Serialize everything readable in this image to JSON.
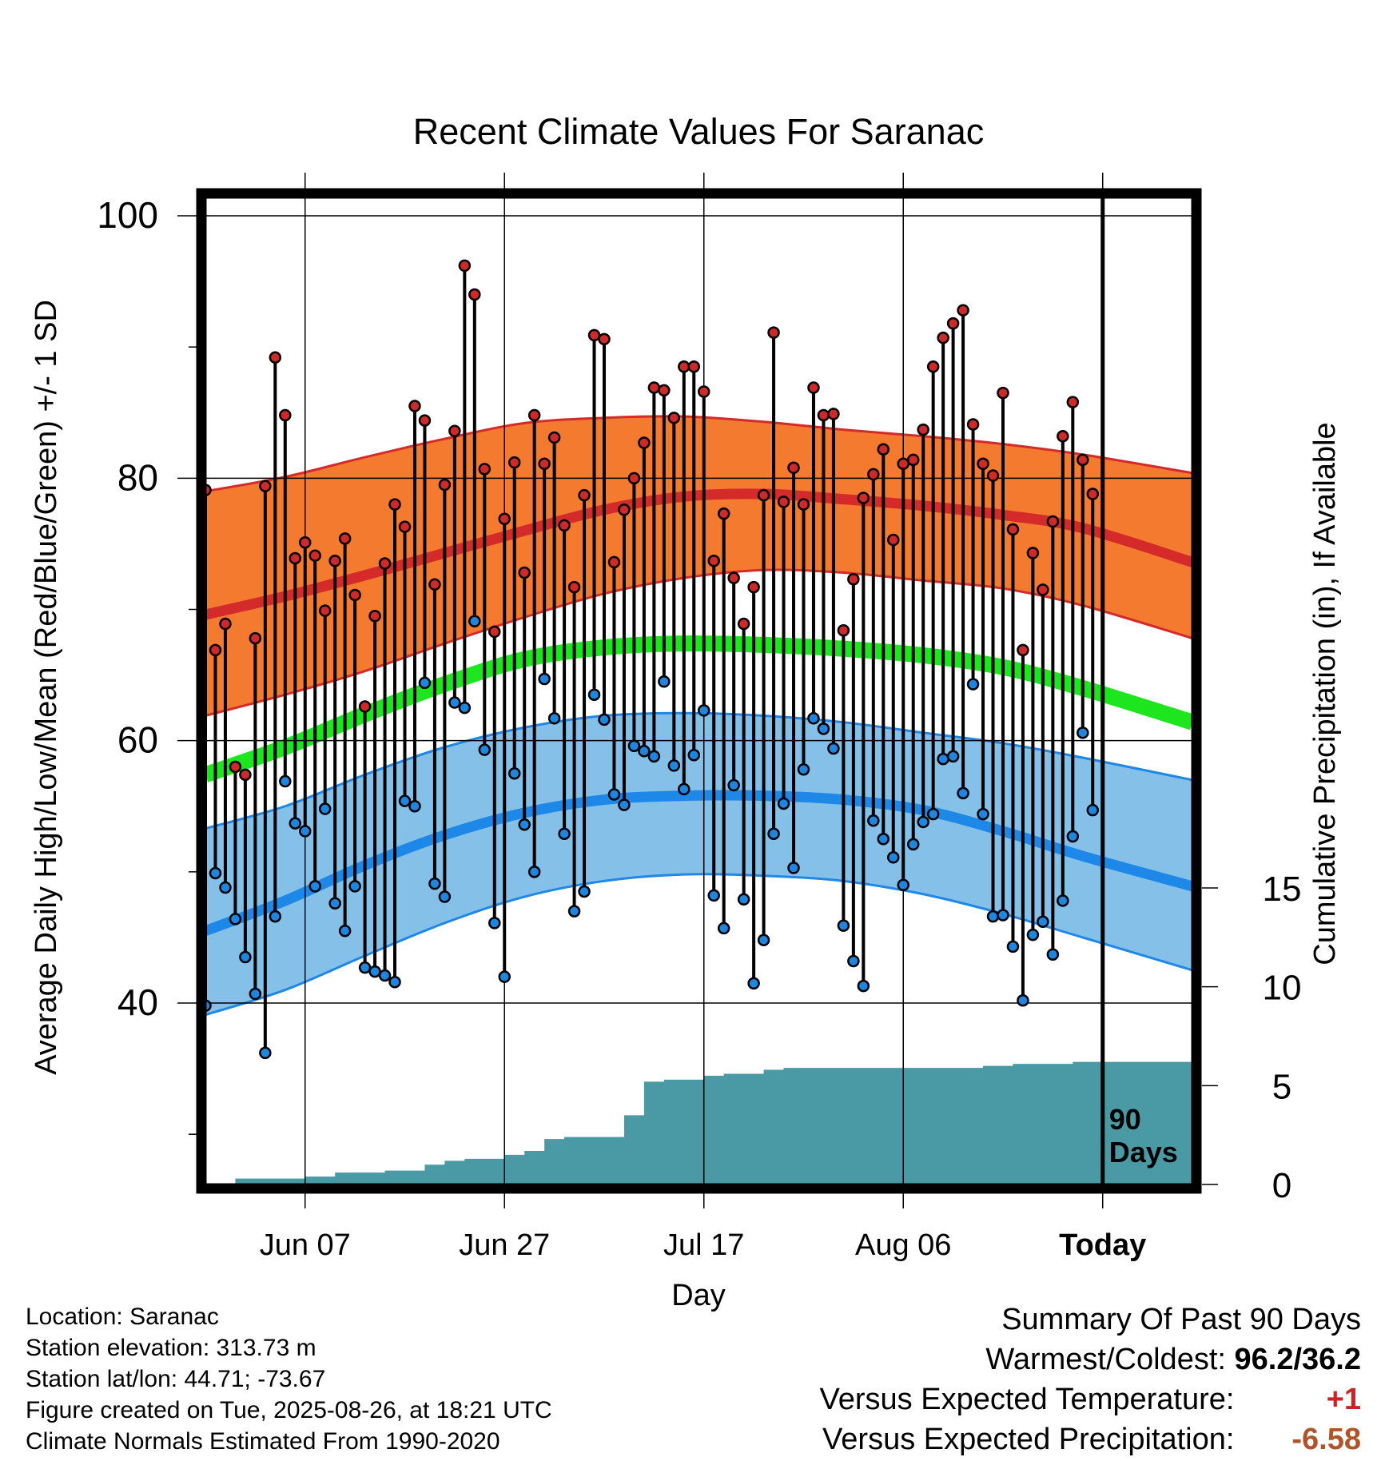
{
  "chart_data": {
    "type": "line",
    "title": "Recent Climate Values For Saranac",
    "xlabel": "Day",
    "ylabel": "Average Daily High/Low/Mean (Red/Blue/Green) +/- 1 SD",
    "y2label": "Cumulative Precipitation (in), If Available",
    "xlim": [
      "2025-05-28",
      "2025-09-04"
    ],
    "ylim": [
      28.7,
      102.8
    ],
    "y2lim": [
      0,
      20
    ],
    "x_ticks": [
      {
        "date": "2025-06-07",
        "label": "Jun 07"
      },
      {
        "date": "2025-06-27",
        "label": "Jun 27"
      },
      {
        "date": "2025-07-17",
        "label": "Jul 17"
      },
      {
        "date": "2025-08-06",
        "label": "Aug 06"
      },
      {
        "date": "2025-08-26",
        "label": "Today"
      }
    ],
    "y_ticks": [
      "40",
      "60",
      "80",
      "100"
    ],
    "y2_ticks": [
      "0",
      "5",
      "10",
      "15"
    ],
    "today": "2025-08-26",
    "window_label": [
      "90",
      "Days"
    ],
    "grid": true,
    "colors": {
      "high_normal": "#d42a2a",
      "high_band": "#f47a30",
      "low_normal": "#1e88e8",
      "low_band": "#85c0e8",
      "mean_normal": "#1ee61e",
      "precip": "#4a9aa5",
      "high_dot": "#cf2a2a",
      "low_dot": "#1f86e0"
    },
    "series": [
      {
        "name": "Daily High",
        "dates": [
          "2025-05-28",
          "2025-05-29",
          "2025-05-30",
          "2025-05-31",
          "2025-06-01",
          "2025-06-02",
          "2025-06-03",
          "2025-06-04",
          "2025-06-05",
          "2025-06-06",
          "2025-06-07",
          "2025-06-08",
          "2025-06-09",
          "2025-06-10",
          "2025-06-11",
          "2025-06-12",
          "2025-06-13",
          "2025-06-14",
          "2025-06-15",
          "2025-06-16",
          "2025-06-17",
          "2025-06-18",
          "2025-06-19",
          "2025-06-20",
          "2025-06-21",
          "2025-06-22",
          "2025-06-23",
          "2025-06-24",
          "2025-06-25",
          "2025-06-26",
          "2025-06-27",
          "2025-06-28",
          "2025-06-29",
          "2025-06-30",
          "2025-07-01",
          "2025-07-02",
          "2025-07-03",
          "2025-07-04",
          "2025-07-05",
          "2025-07-06",
          "2025-07-07",
          "2025-07-08",
          "2025-07-09",
          "2025-07-10",
          "2025-07-11",
          "2025-07-12",
          "2025-07-13",
          "2025-07-14",
          "2025-07-15",
          "2025-07-16",
          "2025-07-17",
          "2025-07-18",
          "2025-07-19",
          "2025-07-20",
          "2025-07-21",
          "2025-07-22",
          "2025-07-23",
          "2025-07-24",
          "2025-07-25",
          "2025-07-26",
          "2025-07-27",
          "2025-07-28",
          "2025-07-29",
          "2025-07-30",
          "2025-07-31",
          "2025-08-01",
          "2025-08-02",
          "2025-08-03",
          "2025-08-04",
          "2025-08-05",
          "2025-08-06",
          "2025-08-07",
          "2025-08-08",
          "2025-08-09",
          "2025-08-10",
          "2025-08-11",
          "2025-08-12",
          "2025-08-13",
          "2025-08-14",
          "2025-08-15",
          "2025-08-16",
          "2025-08-17",
          "2025-08-18",
          "2025-08-19",
          "2025-08-20",
          "2025-08-21",
          "2025-08-22",
          "2025-08-23",
          "2025-08-24",
          "2025-08-25"
        ],
        "values": [
          79.1,
          66.9,
          68.9,
          58.0,
          57.4,
          67.8,
          79.4,
          89.2,
          84.8,
          73.9,
          75.1,
          74.1,
          69.9,
          73.7,
          75.4,
          71.1,
          62.6,
          69.5,
          73.5,
          78.0,
          76.3,
          85.5,
          84.4,
          71.9,
          79.5,
          83.6,
          96.2,
          94.0,
          80.7,
          68.3,
          76.9,
          81.2,
          72.8,
          84.8,
          81.1,
          83.1,
          76.4,
          71.7,
          78.7,
          90.9,
          90.6,
          73.6,
          77.6,
          80.0,
          82.7,
          86.9,
          86.7,
          84.6,
          88.5,
          88.5,
          86.6,
          73.7,
          77.3,
          72.4,
          68.9,
          71.7,
          78.7,
          91.1,
          78.2,
          80.8,
          78.0,
          86.9,
          84.8,
          84.9,
          68.4,
          72.3,
          78.5,
          80.3,
          82.2,
          75.3,
          81.1,
          81.4,
          83.7,
          88.5,
          90.7,
          91.8,
          92.8,
          84.1,
          81.1,
          80.2,
          86.5,
          76.1,
          66.9,
          74.3,
          71.5,
          76.7,
          83.2,
          85.8,
          81.4,
          78.8
        ]
      },
      {
        "name": "Daily Low",
        "dates": [
          "2025-05-28",
          "2025-05-29",
          "2025-05-30",
          "2025-05-31",
          "2025-06-01",
          "2025-06-02",
          "2025-06-03",
          "2025-06-04",
          "2025-06-05",
          "2025-06-06",
          "2025-06-07",
          "2025-06-08",
          "2025-06-09",
          "2025-06-10",
          "2025-06-11",
          "2025-06-12",
          "2025-06-13",
          "2025-06-14",
          "2025-06-15",
          "2025-06-16",
          "2025-06-17",
          "2025-06-18",
          "2025-06-19",
          "2025-06-20",
          "2025-06-21",
          "2025-06-22",
          "2025-06-23",
          "2025-06-24",
          "2025-06-25",
          "2025-06-26",
          "2025-06-27",
          "2025-06-28",
          "2025-06-29",
          "2025-06-30",
          "2025-07-01",
          "2025-07-02",
          "2025-07-03",
          "2025-07-04",
          "2025-07-05",
          "2025-07-06",
          "2025-07-07",
          "2025-07-08",
          "2025-07-09",
          "2025-07-10",
          "2025-07-11",
          "2025-07-12",
          "2025-07-13",
          "2025-07-14",
          "2025-07-15",
          "2025-07-16",
          "2025-07-17",
          "2025-07-18",
          "2025-07-19",
          "2025-07-20",
          "2025-07-21",
          "2025-07-22",
          "2025-07-23",
          "2025-07-24",
          "2025-07-25",
          "2025-07-26",
          "2025-07-27",
          "2025-07-28",
          "2025-07-29",
          "2025-07-30",
          "2025-07-31",
          "2025-08-01",
          "2025-08-02",
          "2025-08-03",
          "2025-08-04",
          "2025-08-05",
          "2025-08-06",
          "2025-08-07",
          "2025-08-08",
          "2025-08-09",
          "2025-08-10",
          "2025-08-11",
          "2025-08-12",
          "2025-08-13",
          "2025-08-14",
          "2025-08-15",
          "2025-08-16",
          "2025-08-17",
          "2025-08-18",
          "2025-08-19",
          "2025-08-20",
          "2025-08-21",
          "2025-08-22",
          "2025-08-23",
          "2025-08-24",
          "2025-08-25"
        ],
        "values": [
          39.8,
          49.9,
          48.8,
          46.4,
          43.5,
          40.7,
          36.2,
          46.6,
          56.9,
          53.7,
          53.1,
          48.9,
          54.8,
          47.6,
          45.5,
          48.9,
          42.7,
          42.4,
          42.1,
          41.6,
          55.4,
          55.0,
          64.4,
          49.1,
          48.1,
          62.9,
          62.5,
          69.1,
          59.3,
          46.1,
          42.0,
          57.5,
          53.6,
          50.0,
          64.7,
          61.7,
          52.9,
          47.0,
          48.5,
          63.5,
          61.6,
          55.9,
          55.1,
          59.6,
          59.2,
          58.8,
          64.5,
          58.1,
          56.3,
          58.9,
          62.3,
          48.2,
          45.7,
          56.6,
          47.9,
          41.5,
          44.8,
          52.9,
          55.2,
          50.3,
          57.8,
          61.7,
          60.9,
          59.4,
          45.9,
          43.2,
          41.3,
          53.9,
          52.5,
          51.1,
          49.0,
          52.1,
          53.8,
          54.4,
          58.6,
          58.8,
          56.0,
          64.3,
          54.4,
          46.6,
          46.7,
          44.3,
          40.2,
          45.2,
          46.2,
          43.7,
          47.8,
          52.7,
          60.6,
          54.7
        ]
      },
      {
        "name": "Normal High",
        "values_by_tick": [
          69.6,
          71.0,
          72.6,
          74.3,
          76.0,
          77.6,
          78.6,
          78.8,
          78.4,
          77.9,
          77.2,
          76.2,
          73.6
        ]
      },
      {
        "name": "Normal High +1 SD",
        "values_by_tick": [
          79.0,
          80.1,
          81.6,
          83.0,
          84.2,
          84.6,
          84.7,
          84.3,
          83.7,
          83.2,
          82.6,
          81.8,
          80.4
        ]
      },
      {
        "name": "Normal High -1 SD",
        "values_by_tick": [
          61.9,
          63.5,
          65.3,
          67.4,
          69.4,
          71.2,
          72.4,
          73.0,
          72.8,
          72.2,
          71.6,
          70.3,
          67.8
        ]
      },
      {
        "name": "Normal Mean",
        "values_by_tick": [
          57.4,
          59.5,
          62.0,
          64.3,
          66.2,
          67.1,
          67.4,
          67.3,
          67.0,
          66.5,
          65.6,
          64.0,
          61.4
        ]
      },
      {
        "name": "Normal Low",
        "values_by_tick": [
          45.5,
          47.8,
          50.5,
          52.8,
          54.5,
          55.5,
          55.8,
          55.8,
          55.5,
          54.7,
          53.1,
          51.2,
          48.9
        ]
      },
      {
        "name": "Normal Low +1 SD",
        "values_by_tick": [
          53.3,
          55.0,
          57.4,
          59.5,
          61.0,
          61.9,
          62.1,
          61.9,
          61.4,
          60.6,
          59.8,
          58.7,
          57.0
        ]
      },
      {
        "name": "Normal Low -1 SD",
        "values_by_tick": [
          39.1,
          41.0,
          43.6,
          46.1,
          48.1,
          49.3,
          49.8,
          49.7,
          49.3,
          48.3,
          46.8,
          45.0,
          42.5
        ]
      },
      {
        "name": "Cumulative Precipitation",
        "dates": [
          "2025-05-28",
          "2025-05-30",
          "2025-05-31",
          "2025-06-07",
          "2025-06-10",
          "2025-06-15",
          "2025-06-19",
          "2025-06-21",
          "2025-06-23",
          "2025-06-27",
          "2025-06-29",
          "2025-07-01",
          "2025-07-03",
          "2025-07-09",
          "2025-07-11",
          "2025-07-13",
          "2025-07-17",
          "2025-07-19",
          "2025-07-23",
          "2025-07-25",
          "2025-08-14",
          "2025-08-17",
          "2025-08-23",
          "2025-09-04"
        ],
        "values": [
          0.0,
          0.0,
          0.3,
          0.4,
          0.6,
          0.7,
          1.0,
          1.2,
          1.3,
          1.5,
          1.7,
          2.3,
          2.4,
          3.5,
          5.2,
          5.3,
          5.5,
          5.6,
          5.8,
          5.9,
          6.0,
          6.1,
          6.2,
          6.2
        ]
      }
    ],
    "tick_dates": [
      "2025-05-28",
      "2025-06-05",
      "2025-06-13",
      "2025-06-21",
      "2025-06-29",
      "2025-07-07",
      "2025-07-15",
      "2025-07-23",
      "2025-07-31",
      "2025-08-08",
      "2025-08-16",
      "2025-08-24",
      "2025-09-04"
    ]
  },
  "info": {
    "location": "Location: Saranac",
    "elevation": "Station elevation: 313.73 m",
    "latlon": "Station lat/lon: 44.71; -73.67",
    "created": "Figure created on Tue, 2025-08-26, at 18:21 UTC",
    "normals": "Climate Normals Estimated From 1990-2020"
  },
  "summary": {
    "heading": "Summary Of Past 90 Days",
    "warmest_label": "Warmest/Coldest:",
    "warmest_value": "96.2/36.2",
    "temp_label": "Versus Expected Temperature:",
    "temp_value": "+1",
    "temp_color": "#cc2222",
    "precip_label": "Versus Expected Precipitation:",
    "precip_value": "-6.58",
    "precip_color": "#b0552a"
  }
}
